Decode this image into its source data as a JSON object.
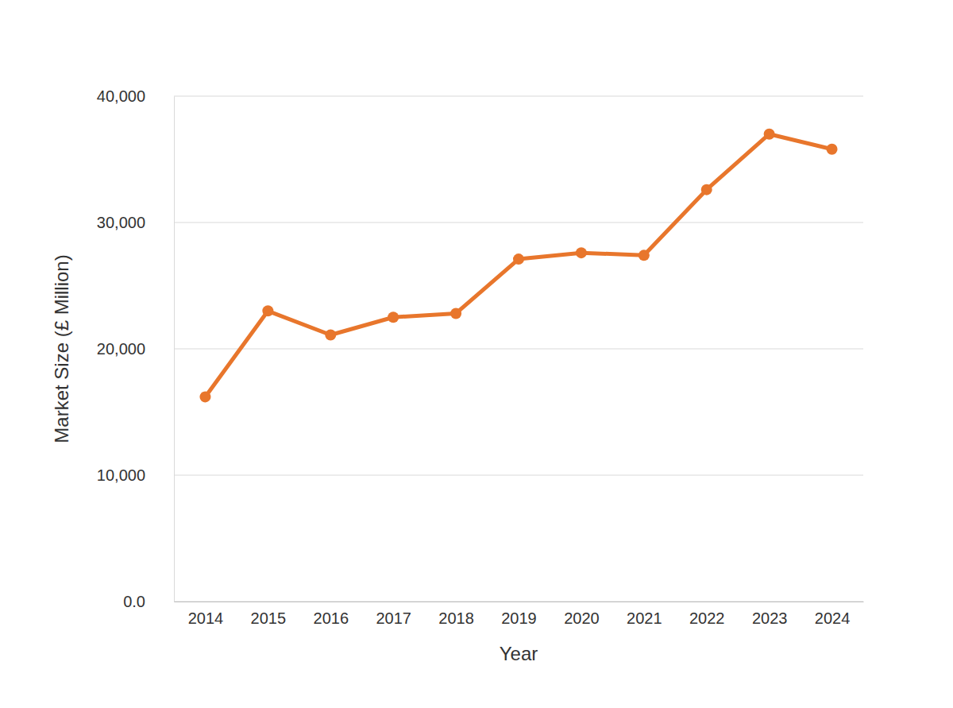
{
  "chart_data": {
    "type": "line",
    "x_label": "Year",
    "y_label": "Market Size (£ Million)",
    "categories": [
      "2014",
      "2015",
      "2016",
      "2017",
      "2018",
      "2019",
      "2020",
      "2021",
      "2022",
      "2023",
      "2024"
    ],
    "values": [
      16200,
      23000,
      21100,
      22500,
      22800,
      27100,
      27600,
      27400,
      32600,
      37000,
      35800
    ],
    "color": "#e8762c",
    "marker": "circle",
    "ylim": [
      0,
      40000
    ],
    "yticks": [
      {
        "value": 0,
        "label": "0.0"
      },
      {
        "value": 10000,
        "label": "10,000"
      },
      {
        "value": 20000,
        "label": "20,000"
      },
      {
        "value": 30000,
        "label": "30,000"
      },
      {
        "value": 40000,
        "label": "40,000"
      }
    ],
    "grid": true
  }
}
